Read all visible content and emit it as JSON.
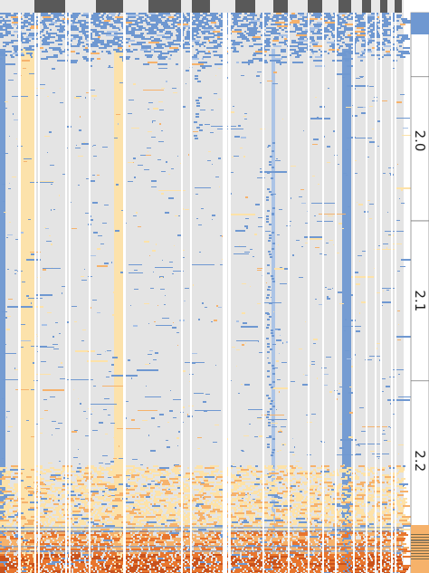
{
  "chart_data": {
    "type": "heatmap",
    "title": "",
    "xlabel": "",
    "ylabel": "",
    "legend": "none",
    "grid": false,
    "colors": {
      "background": "#ffffff",
      "neutral": "#e4e4e4",
      "low": "#6f98d1",
      "low_light": "#a9c2e6",
      "mid_warm": "#fde2a8",
      "high_warm": "#f6b26b",
      "high": "#e8762e",
      "very_high": "#c9521c",
      "column_group_bar": "#595959",
      "side_bar": "#d9d9d9",
      "side_bar_dark": "#7a6a4a"
    },
    "column_groups": 14,
    "row_scale": {
      "orientation": "vertical",
      "position": "right",
      "ticks": [
        {
          "label": "2.0",
          "value": 2.0
        },
        {
          "label": "2.1",
          "value": 2.1
        },
        {
          "label": "2.2",
          "value": 2.2
        }
      ],
      "range": [
        1.92,
        2.27
      ]
    },
    "column_bands": [
      {
        "name": "c1",
        "base": "low"
      },
      {
        "name": "c2",
        "base": "neutral"
      },
      {
        "name": "c3",
        "base": "mid_warm"
      },
      {
        "name": "c4",
        "base": "neutral"
      },
      {
        "name": "c5",
        "base": "neutral"
      },
      {
        "name": "c6",
        "base": "neutral"
      },
      {
        "name": "c7",
        "base": "mid_warm"
      },
      {
        "name": "c8",
        "base": "neutral"
      },
      {
        "name": "c9",
        "base": "neutral"
      },
      {
        "name": "c10",
        "base": "neutral"
      },
      {
        "name": "c11",
        "base": "neutral"
      },
      {
        "name": "c12",
        "base": "neutral"
      },
      {
        "name": "c13",
        "base": "neutral"
      },
      {
        "name": "c14",
        "base": "neutral"
      },
      {
        "name": "c15",
        "base": "neutral"
      },
      {
        "name": "c16",
        "base": "neutral"
      },
      {
        "name": "c17",
        "base": "neutral"
      },
      {
        "name": "c18",
        "base": "low"
      },
      {
        "name": "c19",
        "base": "neutral"
      },
      {
        "name": "c20",
        "base": "neutral"
      },
      {
        "name": "c21",
        "base": "neutral"
      },
      {
        "name": "c22",
        "base": "neutral"
      }
    ]
  }
}
